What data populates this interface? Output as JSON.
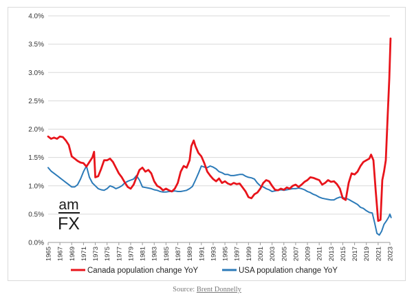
{
  "logo": {
    "top": "am",
    "bottom": "FX"
  },
  "source": {
    "prefix": "Source: ",
    "author": "Brent Donnelly"
  },
  "chart_data": {
    "type": "line",
    "title": "",
    "xlabel": "",
    "ylabel": "",
    "ylim": [
      0,
      4.0
    ],
    "xlim": [
      1965,
      2023
    ],
    "y_ticks": [
      0,
      0.5,
      1.0,
      1.5,
      2.0,
      2.5,
      3.0,
      3.5,
      4.0
    ],
    "y_tick_labels": [
      "0.0%",
      "0.5%",
      "1.0%",
      "1.5%",
      "2.0%",
      "2.5%",
      "3.0%",
      "3.5%",
      "4.0%"
    ],
    "x_tick_labels": [
      "1965",
      "1967",
      "1969",
      "1971",
      "1973",
      "1975",
      "1977",
      "1979",
      "1981",
      "1983",
      "1985",
      "1987",
      "1989",
      "1991",
      "1993",
      "1995",
      "1997",
      "1999",
      "2001",
      "2003",
      "2005",
      "2007",
      "2009",
      "2011",
      "2013",
      "2015",
      "2017",
      "2019",
      "2021",
      "2023"
    ],
    "grid": {
      "horizontal": true,
      "vertical": false
    },
    "legend_position": "bottom",
    "series": [
      {
        "name": "Canada population change YoY",
        "color": "#e8141b",
        "points": [
          [
            1965.0,
            1.87
          ],
          [
            1965.5,
            1.83
          ],
          [
            1966.0,
            1.85
          ],
          [
            1966.5,
            1.83
          ],
          [
            1967.0,
            1.87
          ],
          [
            1967.5,
            1.86
          ],
          [
            1968.0,
            1.8
          ],
          [
            1968.5,
            1.72
          ],
          [
            1969.0,
            1.52
          ],
          [
            1969.5,
            1.48
          ],
          [
            1970.0,
            1.44
          ],
          [
            1970.5,
            1.41
          ],
          [
            1971.0,
            1.4
          ],
          [
            1971.5,
            1.34
          ],
          [
            1972.0,
            1.42
          ],
          [
            1972.5,
            1.5
          ],
          [
            1972.8,
            1.6
          ],
          [
            1973.0,
            1.15
          ],
          [
            1973.5,
            1.17
          ],
          [
            1974.0,
            1.3
          ],
          [
            1974.5,
            1.45
          ],
          [
            1975.0,
            1.45
          ],
          [
            1975.5,
            1.48
          ],
          [
            1976.0,
            1.42
          ],
          [
            1976.5,
            1.32
          ],
          [
            1977.0,
            1.22
          ],
          [
            1977.5,
            1.15
          ],
          [
            1978.0,
            1.06
          ],
          [
            1978.5,
            0.98
          ],
          [
            1979.0,
            0.95
          ],
          [
            1979.5,
            1.02
          ],
          [
            1980.0,
            1.15
          ],
          [
            1980.5,
            1.28
          ],
          [
            1981.0,
            1.32
          ],
          [
            1981.5,
            1.25
          ],
          [
            1982.0,
            1.28
          ],
          [
            1982.5,
            1.22
          ],
          [
            1983.0,
            1.08
          ],
          [
            1983.5,
            1.0
          ],
          [
            1984.0,
            0.97
          ],
          [
            1984.5,
            0.92
          ],
          [
            1985.0,
            0.95
          ],
          [
            1985.5,
            0.92
          ],
          [
            1986.0,
            0.9
          ],
          [
            1986.5,
            0.95
          ],
          [
            1987.0,
            1.05
          ],
          [
            1987.5,
            1.25
          ],
          [
            1988.0,
            1.35
          ],
          [
            1988.5,
            1.32
          ],
          [
            1989.0,
            1.45
          ],
          [
            1989.3,
            1.7
          ],
          [
            1989.7,
            1.8
          ],
          [
            1990.0,
            1.7
          ],
          [
            1990.5,
            1.58
          ],
          [
            1991.0,
            1.52
          ],
          [
            1991.5,
            1.4
          ],
          [
            1992.0,
            1.25
          ],
          [
            1992.5,
            1.18
          ],
          [
            1993.0,
            1.12
          ],
          [
            1993.5,
            1.08
          ],
          [
            1994.0,
            1.13
          ],
          [
            1994.5,
            1.05
          ],
          [
            1995.0,
            1.08
          ],
          [
            1995.5,
            1.04
          ],
          [
            1996.0,
            1.02
          ],
          [
            1996.5,
            1.05
          ],
          [
            1997.0,
            1.03
          ],
          [
            1997.5,
            1.04
          ],
          [
            1998.0,
            0.97
          ],
          [
            1998.5,
            0.9
          ],
          [
            1999.0,
            0.8
          ],
          [
            1999.5,
            0.78
          ],
          [
            2000.0,
            0.85
          ],
          [
            2000.5,
            0.88
          ],
          [
            2001.0,
            0.95
          ],
          [
            2001.5,
            1.05
          ],
          [
            2002.0,
            1.1
          ],
          [
            2002.5,
            1.08
          ],
          [
            2003.0,
            1.0
          ],
          [
            2003.5,
            0.93
          ],
          [
            2004.0,
            0.92
          ],
          [
            2004.5,
            0.95
          ],
          [
            2005.0,
            0.93
          ],
          [
            2005.5,
            0.97
          ],
          [
            2006.0,
            0.95
          ],
          [
            2006.5,
            1.0
          ],
          [
            2007.0,
            1.02
          ],
          [
            2007.5,
            0.98
          ],
          [
            2008.0,
            1.02
          ],
          [
            2008.5,
            1.07
          ],
          [
            2009.0,
            1.1
          ],
          [
            2009.5,
            1.15
          ],
          [
            2010.0,
            1.14
          ],
          [
            2010.5,
            1.12
          ],
          [
            2011.0,
            1.1
          ],
          [
            2011.5,
            1.02
          ],
          [
            2012.0,
            1.05
          ],
          [
            2012.5,
            1.1
          ],
          [
            2013.0,
            1.07
          ],
          [
            2013.5,
            1.08
          ],
          [
            2014.0,
            1.03
          ],
          [
            2014.5,
            0.95
          ],
          [
            2015.0,
            0.78
          ],
          [
            2015.5,
            0.75
          ],
          [
            2016.0,
            1.05
          ],
          [
            2016.5,
            1.22
          ],
          [
            2017.0,
            1.2
          ],
          [
            2017.5,
            1.25
          ],
          [
            2018.0,
            1.35
          ],
          [
            2018.5,
            1.42
          ],
          [
            2019.0,
            1.45
          ],
          [
            2019.5,
            1.48
          ],
          [
            2019.8,
            1.55
          ],
          [
            2020.2,
            1.45
          ],
          [
            2020.6,
            0.9
          ],
          [
            2021.0,
            0.38
          ],
          [
            2021.4,
            0.4
          ],
          [
            2021.7,
            1.1
          ],
          [
            2022.0,
            1.25
          ],
          [
            2022.3,
            1.45
          ],
          [
            2022.6,
            2.2
          ],
          [
            2022.9,
            2.9
          ],
          [
            2023.1,
            3.6
          ]
        ]
      },
      {
        "name": "USA population change YoY",
        "color": "#2b7ab8",
        "points": [
          [
            1965.0,
            1.32
          ],
          [
            1965.5,
            1.26
          ],
          [
            1966.0,
            1.22
          ],
          [
            1966.5,
            1.18
          ],
          [
            1967.0,
            1.14
          ],
          [
            1967.5,
            1.1
          ],
          [
            1968.0,
            1.06
          ],
          [
            1968.5,
            1.02
          ],
          [
            1969.0,
            0.98
          ],
          [
            1969.5,
            0.98
          ],
          [
            1970.0,
            1.02
          ],
          [
            1970.5,
            1.12
          ],
          [
            1971.0,
            1.25
          ],
          [
            1971.5,
            1.35
          ],
          [
            1972.0,
            1.15
          ],
          [
            1972.5,
            1.05
          ],
          [
            1973.0,
            1.0
          ],
          [
            1973.5,
            0.95
          ],
          [
            1974.0,
            0.93
          ],
          [
            1974.5,
            0.92
          ],
          [
            1975.0,
            0.95
          ],
          [
            1975.5,
            1.0
          ],
          [
            1976.0,
            0.98
          ],
          [
            1976.5,
            0.95
          ],
          [
            1977.0,
            0.97
          ],
          [
            1977.5,
            1.0
          ],
          [
            1978.0,
            1.05
          ],
          [
            1978.5,
            1.08
          ],
          [
            1979.0,
            1.1
          ],
          [
            1979.5,
            1.12
          ],
          [
            1980.0,
            1.18
          ],
          [
            1980.5,
            1.1
          ],
          [
            1981.0,
            0.98
          ],
          [
            1981.5,
            0.97
          ],
          [
            1982.0,
            0.96
          ],
          [
            1982.5,
            0.95
          ],
          [
            1983.0,
            0.93
          ],
          [
            1983.5,
            0.92
          ],
          [
            1984.0,
            0.9
          ],
          [
            1984.5,
            0.89
          ],
          [
            1985.0,
            0.89
          ],
          [
            1985.5,
            0.9
          ],
          [
            1986.0,
            0.9
          ],
          [
            1986.5,
            0.91
          ],
          [
            1987.0,
            0.9
          ],
          [
            1987.5,
            0.9
          ],
          [
            1988.0,
            0.91
          ],
          [
            1988.5,
            0.92
          ],
          [
            1989.0,
            0.95
          ],
          [
            1989.5,
            0.99
          ],
          [
            1990.0,
            1.1
          ],
          [
            1990.5,
            1.22
          ],
          [
            1991.0,
            1.35
          ],
          [
            1991.5,
            1.33
          ],
          [
            1992.0,
            1.32
          ],
          [
            1992.5,
            1.35
          ],
          [
            1993.0,
            1.33
          ],
          [
            1993.5,
            1.3
          ],
          [
            1994.0,
            1.25
          ],
          [
            1994.5,
            1.23
          ],
          [
            1995.0,
            1.2
          ],
          [
            1995.5,
            1.2
          ],
          [
            1996.0,
            1.18
          ],
          [
            1996.5,
            1.18
          ],
          [
            1997.0,
            1.19
          ],
          [
            1997.5,
            1.2
          ],
          [
            1998.0,
            1.2
          ],
          [
            1998.5,
            1.17
          ],
          [
            1999.0,
            1.15
          ],
          [
            1999.5,
            1.14
          ],
          [
            2000.0,
            1.12
          ],
          [
            2000.5,
            1.05
          ],
          [
            2001.0,
            1.0
          ],
          [
            2001.5,
            0.98
          ],
          [
            2002.0,
            0.95
          ],
          [
            2002.5,
            0.93
          ],
          [
            2003.0,
            0.9
          ],
          [
            2003.5,
            0.91
          ],
          [
            2004.0,
            0.92
          ],
          [
            2004.5,
            0.93
          ],
          [
            2005.0,
            0.92
          ],
          [
            2005.5,
            0.93
          ],
          [
            2006.0,
            0.94
          ],
          [
            2006.5,
            0.95
          ],
          [
            2007.0,
            0.95
          ],
          [
            2007.5,
            0.96
          ],
          [
            2008.0,
            0.95
          ],
          [
            2008.5,
            0.93
          ],
          [
            2009.0,
            0.9
          ],
          [
            2009.5,
            0.88
          ],
          [
            2010.0,
            0.85
          ],
          [
            2010.5,
            0.83
          ],
          [
            2011.0,
            0.8
          ],
          [
            2011.5,
            0.78
          ],
          [
            2012.0,
            0.77
          ],
          [
            2012.5,
            0.76
          ],
          [
            2013.0,
            0.75
          ],
          [
            2013.5,
            0.75
          ],
          [
            2014.0,
            0.78
          ],
          [
            2014.5,
            0.8
          ],
          [
            2015.0,
            0.79
          ],
          [
            2015.5,
            0.78
          ],
          [
            2016.0,
            0.76
          ],
          [
            2016.5,
            0.73
          ],
          [
            2017.0,
            0.7
          ],
          [
            2017.5,
            0.67
          ],
          [
            2018.0,
            0.62
          ],
          [
            2018.5,
            0.6
          ],
          [
            2019.0,
            0.56
          ],
          [
            2019.5,
            0.53
          ],
          [
            2020.0,
            0.52
          ],
          [
            2020.4,
            0.35
          ],
          [
            2020.8,
            0.16
          ],
          [
            2021.2,
            0.13
          ],
          [
            2021.6,
            0.2
          ],
          [
            2022.0,
            0.32
          ],
          [
            2022.4,
            0.38
          ],
          [
            2022.8,
            0.45
          ],
          [
            2023.0,
            0.5
          ],
          [
            2023.2,
            0.44
          ]
        ]
      }
    ]
  }
}
